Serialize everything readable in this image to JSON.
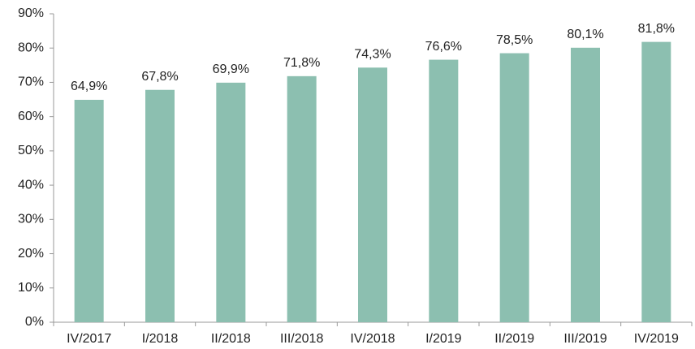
{
  "chart_data": {
    "type": "bar",
    "categories": [
      "IV/2017",
      "I/2018",
      "II/2018",
      "III/2018",
      "IV/2018",
      "I/2019",
      "II/2019",
      "III/2019",
      "IV/2019"
    ],
    "values": [
      64.9,
      67.8,
      69.9,
      71.8,
      74.3,
      76.6,
      78.5,
      80.1,
      81.8
    ],
    "value_labels": [
      "64,9%",
      "67,8%",
      "69,9%",
      "71,8%",
      "74,3%",
      "76,6%",
      "78,5%",
      "80,1%",
      "81,8%"
    ],
    "color": "#8cbfb0",
    "ylim": [
      0,
      90
    ],
    "yticks": [
      {
        "value": 0,
        "label": "0%"
      },
      {
        "value": 10,
        "label": "10%"
      },
      {
        "value": 20,
        "label": "20%"
      },
      {
        "value": 30,
        "label": "30%"
      },
      {
        "value": 40,
        "label": "40%"
      },
      {
        "value": 50,
        "label": "50%"
      },
      {
        "value": 60,
        "label": "60%"
      },
      {
        "value": 70,
        "label": "70%"
      },
      {
        "value": 80,
        "label": "80%"
      },
      {
        "value": 90,
        "label": "90%"
      }
    ],
    "grid": false
  }
}
